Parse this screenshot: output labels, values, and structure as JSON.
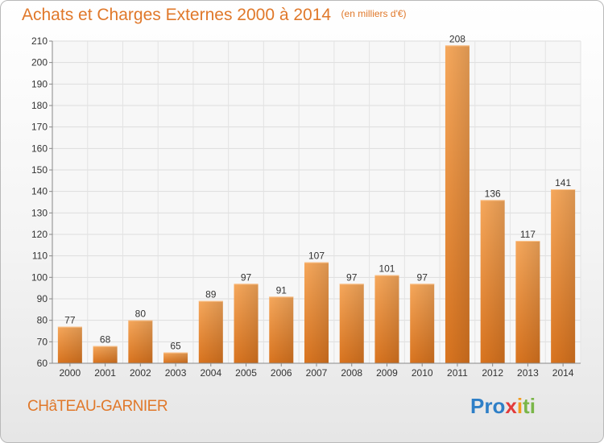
{
  "chart_data": {
    "type": "bar",
    "title": "Achats et Charges Externes 2000 à 2014",
    "unit_label": "(en milliers d'€)",
    "categories": [
      "2000",
      "2001",
      "2002",
      "2003",
      "2004",
      "2005",
      "2006",
      "2007",
      "2008",
      "2009",
      "2010",
      "2011",
      "2012",
      "2013",
      "2014"
    ],
    "values": [
      77,
      68,
      80,
      65,
      89,
      97,
      91,
      107,
      97,
      101,
      97,
      208,
      136,
      117,
      141
    ],
    "ylim": [
      60,
      210
    ],
    "yticks": [
      60,
      70,
      80,
      90,
      100,
      110,
      120,
      130,
      140,
      150,
      160,
      170,
      180,
      190,
      200,
      210
    ],
    "grid": true,
    "bar_color": "#f39a45"
  },
  "footer": {
    "town": "CHâTEAU-GARNIER",
    "logo_text": [
      "Pro",
      "x",
      "i",
      "ti"
    ]
  }
}
